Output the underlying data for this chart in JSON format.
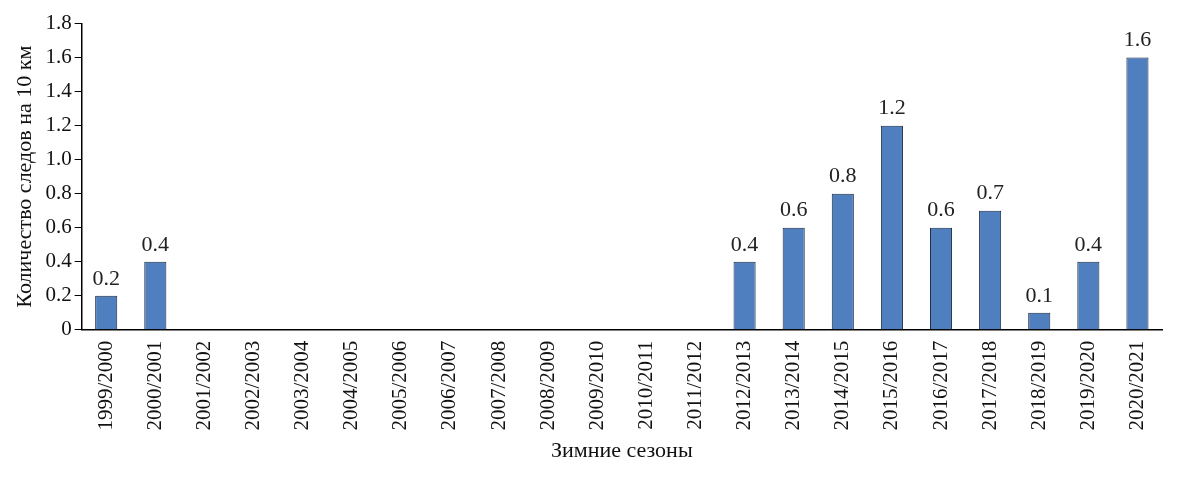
{
  "chart_data": {
    "type": "bar",
    "xlabel": "Зимние сезоны",
    "ylabel": "Количество следов на 10 км",
    "categories": [
      "1999/2000",
      "2000/2001",
      "2001/2002",
      "2002/2003",
      "2003/2004",
      "2004/2005",
      "2005/2006",
      "2006/2007",
      "2007/2008",
      "2008/2009",
      "2009/2010",
      "2010/2011",
      "2011/2012",
      "2012/2013",
      "2013/2014",
      "2014/2015",
      "2015/2016",
      "2016/2017",
      "2017/2018",
      "2018/2019",
      "2019/2020",
      "2020/2021"
    ],
    "values": [
      0.2,
      0.4,
      0,
      0,
      0,
      0,
      0,
      0,
      0,
      0,
      0,
      0,
      0,
      0.4,
      0.6,
      0.8,
      1.2,
      0.6,
      0.7,
      0.1,
      0.4,
      1.6
    ],
    "value_labels": [
      "0.2",
      "0.4",
      null,
      null,
      null,
      null,
      null,
      null,
      null,
      null,
      null,
      null,
      null,
      "0.4",
      "0.6",
      "0.8",
      "1.2",
      "0.6",
      "0.7",
      "0.1",
      "0.4",
      "1.6"
    ],
    "color": "#4f7fbf",
    "ylim": [
      0,
      1.8
    ],
    "yticks": [
      0,
      0.2,
      0.4,
      0.6,
      0.8,
      {
        "value": 1,
        "label": "1.0"
      },
      1.2,
      1.4,
      1.6,
      1.8
    ],
    "grid": false,
    "legend": false
  }
}
